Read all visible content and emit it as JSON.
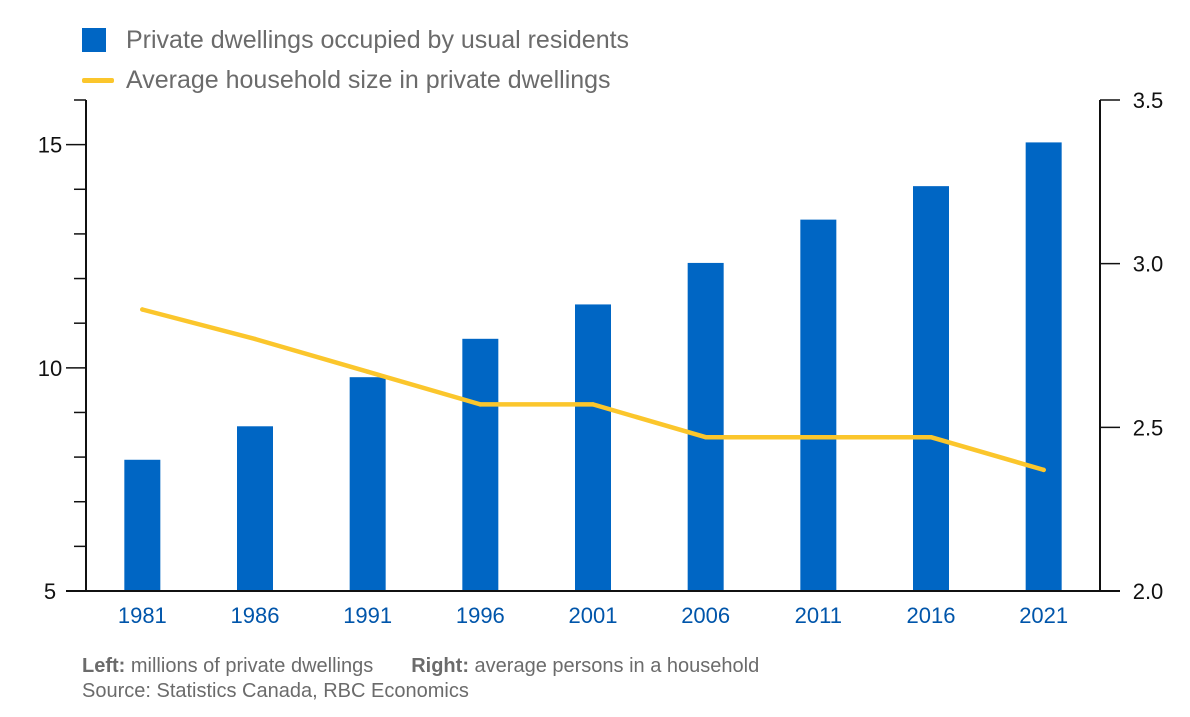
{
  "colors": {
    "bar": "#0066c4",
    "line": "#fbc62c",
    "axis": "#111111",
    "category_text": "#0055aa",
    "note_text": "#6b6b6b"
  },
  "legend": {
    "bar_label": "Private dwellings occupied by usual residents",
    "line_label": "Average household size in private dwellings"
  },
  "notes": {
    "left_title": "Left:",
    "left_text": " millions of private dwellings",
    "right_title": "Right:",
    "right_text": " average persons in a household",
    "source": "Source: Statistics Canada, RBC Economics"
  },
  "chart_data": {
    "type": "bar",
    "categories": [
      "1981",
      "1986",
      "1991",
      "1996",
      "2001",
      "2006",
      "2011",
      "2016",
      "2021"
    ],
    "series": [
      {
        "name": "Private dwellings occupied by usual residents",
        "type": "bar",
        "axis": "left",
        "values": [
          7.94,
          8.69,
          9.79,
          10.65,
          11.42,
          12.35,
          13.32,
          14.07,
          15.05
        ]
      },
      {
        "name": "Average household size in private dwellings",
        "type": "line",
        "axis": "right",
        "values": [
          2.86,
          2.77,
          2.67,
          2.57,
          2.57,
          2.47,
          2.47,
          2.47,
          2.37
        ]
      }
    ],
    "left_axis": {
      "ylim": [
        5,
        16
      ],
      "ticks": [
        5,
        10,
        15
      ],
      "minor_step": 1
    },
    "right_axis": {
      "ylim": [
        2.0,
        3.5
      ],
      "ticks": [
        "2.0",
        "2.5",
        "3.0",
        "3.5"
      ]
    },
    "grid": false,
    "legend_position": "top-left"
  }
}
